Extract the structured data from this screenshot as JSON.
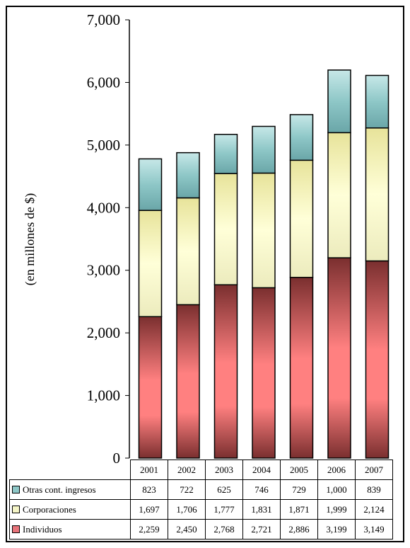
{
  "chart_data": {
    "type": "bar",
    "stacked": true,
    "ylabel": "(en millones de $)",
    "ylim": [
      0,
      7000
    ],
    "yticks": [
      "0",
      "1,000",
      "2,000",
      "3,000",
      "4,000",
      "5,000",
      "6,000",
      "7,000"
    ],
    "grid": false,
    "categories": [
      "2001",
      "2002",
      "2003",
      "2004",
      "2005",
      "2006",
      "2007"
    ],
    "series": [
      {
        "name": "Otras cont. ingresos",
        "color": "#8ec7c7",
        "values": [
          823,
          722,
          625,
          746,
          729,
          1000,
          839
        ],
        "labels": [
          "823",
          "722",
          "625",
          "746",
          "729",
          "1,000",
          "839"
        ]
      },
      {
        "name": "Corporaciones",
        "color": "#f4f4c6",
        "values": [
          1697,
          1706,
          1777,
          1831,
          1871,
          1999,
          2124
        ],
        "labels": [
          "1,697",
          "1,706",
          "1,777",
          "1,831",
          "1,871",
          "1,999",
          "2,124"
        ]
      },
      {
        "name": "Individuos",
        "color": "#e8747a",
        "values": [
          2259,
          2450,
          2768,
          2721,
          2886,
          3199,
          3149
        ],
        "labels": [
          "2,259",
          "2,450",
          "2,768",
          "2,721",
          "2,886",
          "3,199",
          "3,149"
        ]
      }
    ]
  }
}
